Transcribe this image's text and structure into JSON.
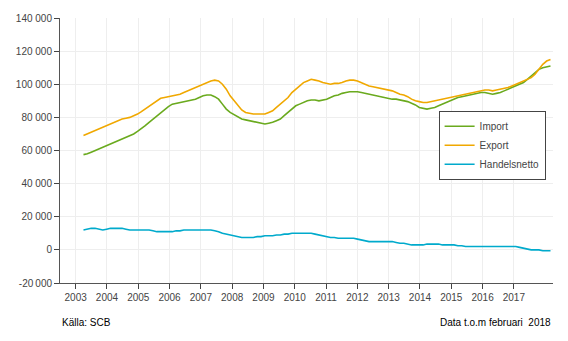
{
  "chart_data": {
    "type": "line",
    "x": [
      2003.25,
      2003.3733,
      2003.4966,
      2003.6199,
      2003.7432,
      2003.8665,
      2003.9898,
      2004.1131,
      2004.2364,
      2004.3598,
      2004.4831,
      2004.6064,
      2004.7297,
      2004.853,
      2004.9763,
      2005.0996,
      2005.2229,
      2005.3462,
      2005.4695,
      2005.5928,
      2005.7161,
      2005.8394,
      2005.9627,
      2006.086,
      2006.2093,
      2006.3326,
      2006.456,
      2006.5793,
      2006.7026,
      2006.8259,
      2006.9492,
      2007.0725,
      2007.1958,
      2007.3191,
      2007.4424,
      2007.5657,
      2007.689,
      2007.8123,
      2007.9356,
      2008.0589,
      2008.1822,
      2008.3055,
      2008.4288,
      2008.5521,
      2008.6755,
      2008.7988,
      2008.9221,
      2009.0454,
      2009.1687,
      2009.292,
      2009.4153,
      2009.5386,
      2009.6619,
      2009.7852,
      2009.9085,
      2010.0318,
      2010.1551,
      2010.2784,
      2010.4017,
      2010.525,
      2010.6483,
      2010.7717,
      2010.895,
      2011.0183,
      2011.1416,
      2011.2649,
      2011.3882,
      2011.5115,
      2011.6348,
      2011.7581,
      2011.8814,
      2012.0047,
      2012.128,
      2012.2513,
      2012.3746,
      2012.4979,
      2012.6212,
      2012.7445,
      2012.8679,
      2012.9912,
      2013.1145,
      2013.2378,
      2013.3611,
      2013.4844,
      2013.6077,
      2013.731,
      2013.8543,
      2013.9776,
      2014.1009,
      2014.2242,
      2014.3475,
      2014.4708,
      2014.5941,
      2014.7174,
      2014.8407,
      2014.964,
      2015.0874,
      2015.2107,
      2015.334,
      2015.4573,
      2015.5806,
      2015.7039,
      2015.8272,
      2015.9505,
      2016.0738,
      2016.1971,
      2016.3204,
      2016.4437,
      2016.567,
      2016.6903,
      2016.8136,
      2016.9369,
      2017.0602,
      2017.1836,
      2017.3069,
      2017.4302,
      2017.5535,
      2017.6768,
      2017.8001,
      2017.9234,
      2018.0467,
      2018.17
    ],
    "series": [
      {
        "name": "Import",
        "color": "#6aaa1e",
        "values": [
          57500,
          58000,
          59000,
          60000,
          61000,
          62000,
          63000,
          64000,
          65000,
          66000,
          67000,
          68000,
          69000,
          70000,
          71500,
          73000,
          75000,
          77000,
          79000,
          81000,
          83000,
          85000,
          86500,
          88000,
          88500,
          89000,
          89500,
          90000,
          90500,
          91000,
          92000,
          93000,
          93500,
          93500,
          92500,
          91000,
          88000,
          85000,
          83000,
          81500,
          80000,
          79000,
          78500,
          78000,
          77500,
          77000,
          76500,
          76000,
          76500,
          77000,
          78000,
          79000,
          81000,
          83000,
          85000,
          87000,
          88000,
          89000,
          90000,
          90500,
          90500,
          90000,
          90500,
          91000,
          92000,
          93000,
          93500,
          94500,
          95000,
          95500,
          95500,
          95500,
          95000,
          94500,
          94000,
          93500,
          93000,
          92500,
          92000,
          91500,
          91000,
          91000,
          90500,
          90000,
          89500,
          88500,
          87500,
          86000,
          85500,
          85000,
          85500,
          86000,
          87000,
          88000,
          89000,
          90000,
          91000,
          92000,
          92500,
          93000,
          93500,
          94000,
          94500,
          95000,
          95000,
          94500,
          94000,
          94500,
          95000,
          96000,
          97000,
          98000,
          99000,
          100000,
          101000,
          103000,
          105000,
          107000,
          109000,
          110000,
          110500,
          111000
        ]
      },
      {
        "name": "Export",
        "color": "#f0a800",
        "values": [
          69000,
          70000,
          71000,
          72000,
          73000,
          74000,
          75000,
          76000,
          77000,
          78000,
          79000,
          79500,
          80000,
          81000,
          82000,
          83500,
          85000,
          87000,
          88500,
          90000,
          91500,
          92000,
          92500,
          93000,
          93500,
          94000,
          95000,
          96000,
          97000,
          98000,
          99000,
          100000,
          101000,
          102000,
          102500,
          102000,
          100000,
          97000,
          93000,
          90000,
          87000,
          84500,
          83000,
          82500,
          82000,
          82000,
          82000,
          82000,
          83000,
          84000,
          86000,
          88000,
          90000,
          92000,
          95000,
          97000,
          99000,
          101000,
          102000,
          103000,
          102500,
          102000,
          101000,
          100500,
          100000,
          100500,
          100500,
          101000,
          102000,
          102500,
          102500,
          102000,
          101000,
          100000,
          99000,
          98500,
          98000,
          97500,
          97000,
          96500,
          96000,
          95000,
          94000,
          93500,
          92500,
          91000,
          90000,
          89500,
          89000,
          89000,
          89500,
          90000,
          90500,
          91000,
          91500,
          92000,
          92500,
          93000,
          93500,
          94000,
          94500,
          95000,
          95500,
          96000,
          96500,
          96500,
          96000,
          96500,
          97000,
          97500,
          98000,
          99000,
          100000,
          101000,
          102000,
          103000,
          104000,
          106000,
          109000,
          112000,
          114000,
          115000
        ]
      },
      {
        "name": "Handelsnetto",
        "color": "#00aacc",
        "values": [
          12000,
          12500,
          13000,
          13000,
          12500,
          12000,
          12500,
          13000,
          13000,
          13000,
          13000,
          12500,
          12000,
          12000,
          12000,
          12000,
          12000,
          12000,
          11500,
          11000,
          11000,
          11000,
          11000,
          11000,
          11500,
          11500,
          12000,
          12000,
          12000,
          12000,
          12000,
          12000,
          12000,
          12000,
          11500,
          11000,
          10000,
          9500,
          9000,
          8500,
          8000,
          7500,
          7500,
          7500,
          7500,
          8000,
          8000,
          8500,
          8500,
          8500,
          9000,
          9000,
          9500,
          9500,
          10000,
          10000,
          10000,
          10000,
          10000,
          10000,
          9500,
          9000,
          8500,
          8000,
          7500,
          7500,
          7000,
          7000,
          7000,
          7000,
          7000,
          6500,
          6000,
          5500,
          5000,
          5000,
          5000,
          5000,
          5000,
          5000,
          5000,
          4500,
          4000,
          4000,
          3500,
          3000,
          3000,
          3000,
          3000,
          3500,
          3500,
          3500,
          3500,
          3000,
          3000,
          3000,
          3000,
          2500,
          2500,
          2000,
          2000,
          2000,
          2000,
          2000,
          2000,
          2000,
          2000,
          2000,
          2000,
          2000,
          2000,
          2000,
          2000,
          1500,
          1000,
          500,
          0,
          0,
          0,
          -500,
          -500,
          -500
        ]
      }
    ],
    "xlim": [
      2002.5,
      2018.25
    ],
    "xticks": [
      2003,
      2004,
      2005,
      2006,
      2007,
      2008,
      2009,
      2010,
      2011,
      2012,
      2013,
      2014,
      2015,
      2016,
      2017
    ],
    "ylim": [
      -20000,
      140000
    ],
    "yticks": [
      {
        "value": -20000,
        "label": "-20 000"
      },
      0,
      {
        "value": 20000,
        "label": "20 000"
      },
      {
        "value": 40000,
        "label": "40 000"
      },
      {
        "value": 60000,
        "label": "60 000"
      },
      {
        "value": 80000,
        "label": "80 000"
      },
      {
        "value": 100000,
        "label": "100 000"
      },
      {
        "value": 120000,
        "label": "120 000"
      },
      {
        "value": 140000,
        "label": "140 000"
      }
    ],
    "annotations": [
      "Källa: SCB",
      "Data t.o.m februari  2018"
    ],
    "grid": true,
    "legend": "right"
  }
}
